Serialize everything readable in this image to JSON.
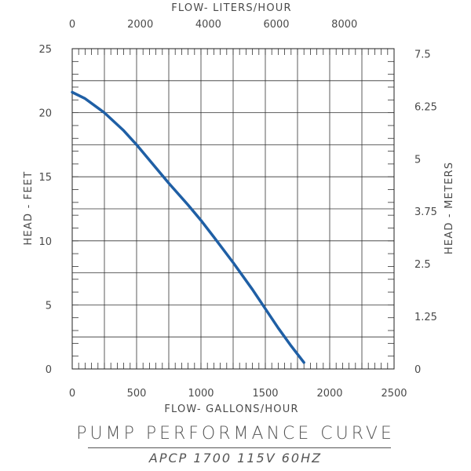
{
  "chart_data": {
    "type": "line",
    "title": "PUMP PERFORMANCE CURVE",
    "subtitle": "APCP 1700 115V 60HZ",
    "xlabel": "FLOW- GALLONS/HOUR",
    "ylabel": "HEAD - FEET",
    "x2label": "FLOW- LITERS/HOUR",
    "y2label": "HEAD - METERS",
    "xlim": [
      0,
      2500
    ],
    "ylim": [
      0,
      25
    ],
    "x2lim": [
      0,
      9460
    ],
    "y2lim": [
      0,
      7.62
    ],
    "xticks": [
      0,
      500,
      1000,
      1500,
      2000,
      2500
    ],
    "yticks": [
      0,
      5,
      10,
      15,
      20,
      25
    ],
    "x2ticks": [
      0,
      2000,
      4000,
      6000,
      8000
    ],
    "y2ticks": [
      0,
      1.25,
      2.5,
      3.75,
      5,
      6.25,
      7.5
    ],
    "x_minor_step": 50,
    "x_grid_step": 250,
    "y_minor_step": 1,
    "y_grid_step": 2.5,
    "grid": true,
    "line_color": "#1f5fa5",
    "series": [
      {
        "x": [
          0,
          100,
          250,
          400,
          500,
          600,
          750,
          900,
          1000,
          1100,
          1250,
          1400,
          1500,
          1600,
          1700,
          1800
        ],
        "values": [
          21.6,
          21.1,
          20.0,
          18.6,
          17.5,
          16.3,
          14.5,
          12.8,
          11.6,
          10.3,
          8.3,
          6.2,
          4.7,
          3.2,
          1.8,
          0.5
        ]
      }
    ]
  }
}
